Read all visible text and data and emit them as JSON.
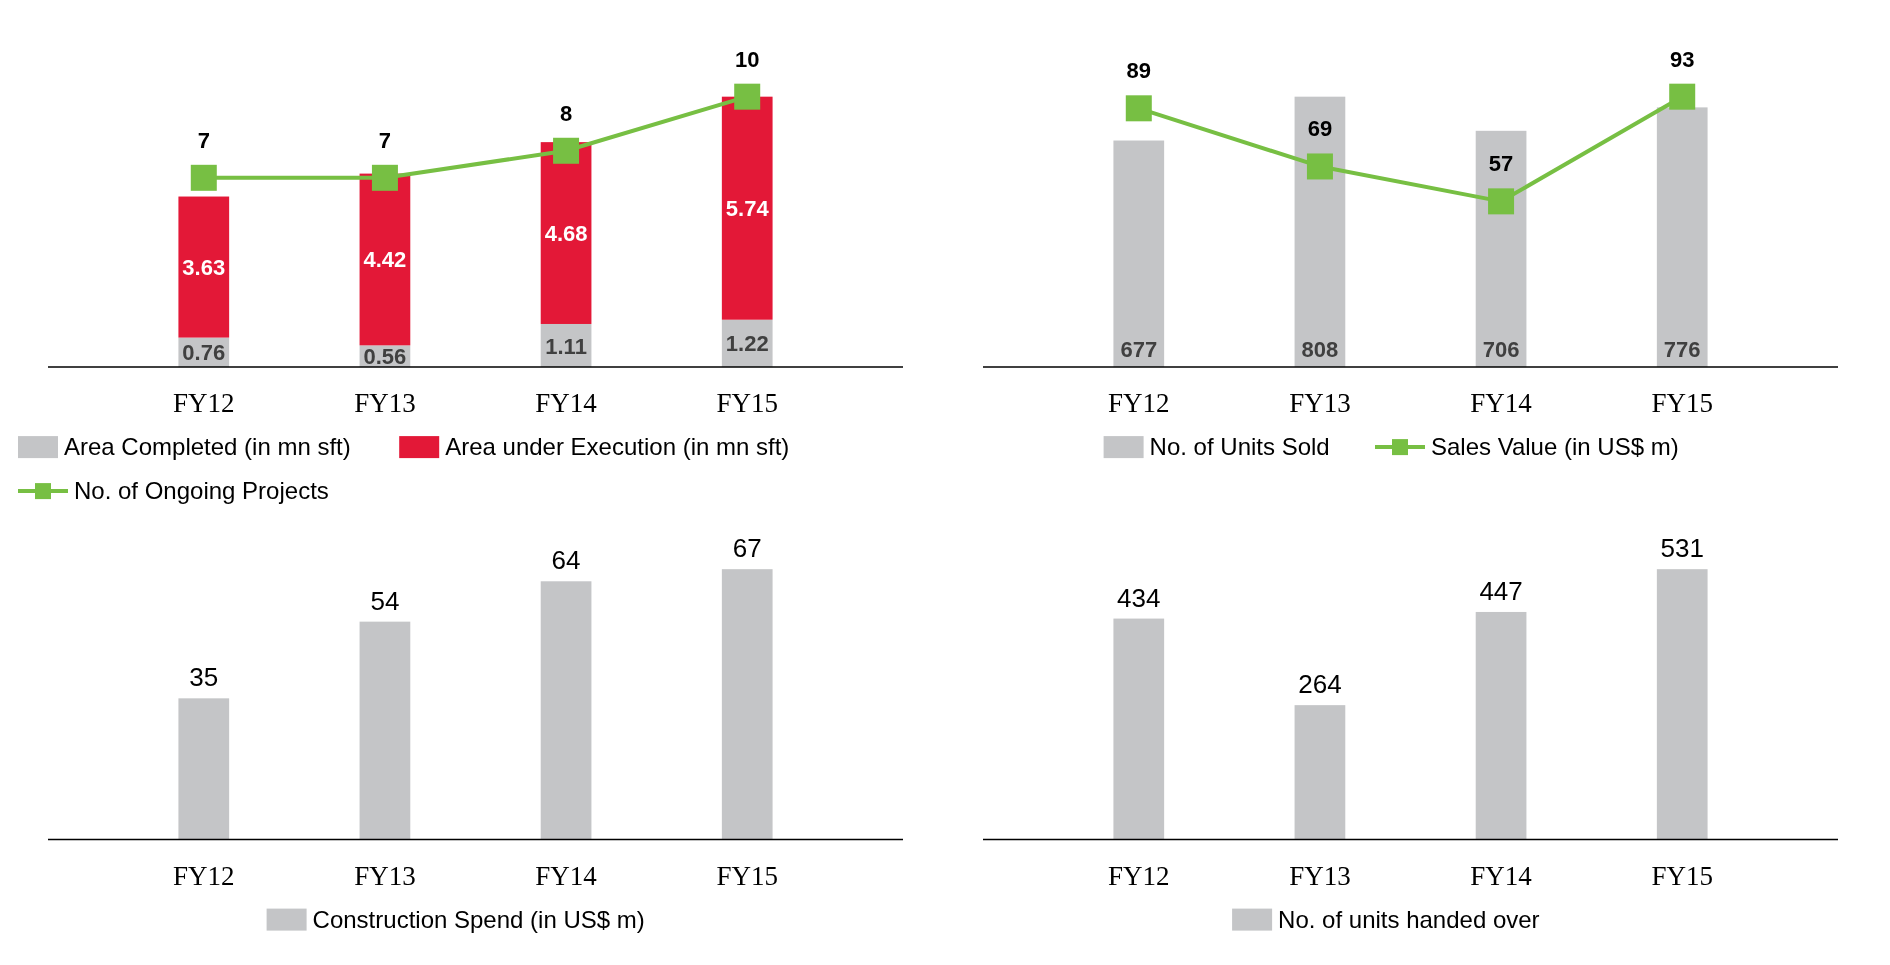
{
  "chart_data": [
    {
      "type": "bar",
      "categories": [
        "FY12",
        "FY13",
        "FY14",
        "FY15"
      ],
      "stacked": true,
      "tick_labels": "x",
      "data_labels": true,
      "legend": "bottom",
      "marker": "square",
      "series": [
        {
          "name": "Area Completed (in mn sft)",
          "color": "#c4c5c7",
          "values": [
            0.76,
            0.56,
            1.11,
            1.22
          ]
        },
        {
          "name": "Area under Execution (in mn sft)",
          "color": "#e31837",
          "values": [
            3.63,
            4.42,
            4.68,
            5.74
          ]
        },
        {
          "name": "No. of Ongoing Projects",
          "type": "line",
          "axis": "y2",
          "color": "#77bf43",
          "values": [
            7,
            7,
            8,
            10
          ]
        }
      ]
    },
    {
      "type": "bar",
      "categories": [
        "FY12",
        "FY13",
        "FY14",
        "FY15"
      ],
      "tick_labels": "x",
      "data_labels": true,
      "legend": "bottom",
      "marker": "square",
      "series": [
        {
          "name": "No. of Units Sold",
          "color": "#c4c5c7",
          "values": [
            677,
            808,
            706,
            776
          ]
        },
        {
          "name": "Sales Value (in US$ m)",
          "type": "line",
          "axis": "y2",
          "color": "#77bf43",
          "values": [
            89,
            69,
            57,
            93
          ]
        }
      ]
    },
    {
      "type": "bar",
      "categories": [
        "FY12",
        "FY13",
        "FY14",
        "FY15"
      ],
      "tick_labels": "x",
      "data_labels": true,
      "legend": "bottom",
      "series": [
        {
          "name": "Construction Spend (in US$ m)",
          "color": "#c4c5c7",
          "values": [
            35,
            54,
            64,
            67
          ]
        }
      ]
    },
    {
      "type": "bar",
      "categories": [
        "FY12",
        "FY13",
        "FY14",
        "FY15"
      ],
      "tick_labels": "x",
      "data_labels": true,
      "legend": "bottom",
      "series": [
        {
          "name": "No. of units handed over",
          "color": "#c4c5c7",
          "values": [
            434,
            264,
            447,
            531
          ]
        }
      ]
    }
  ]
}
